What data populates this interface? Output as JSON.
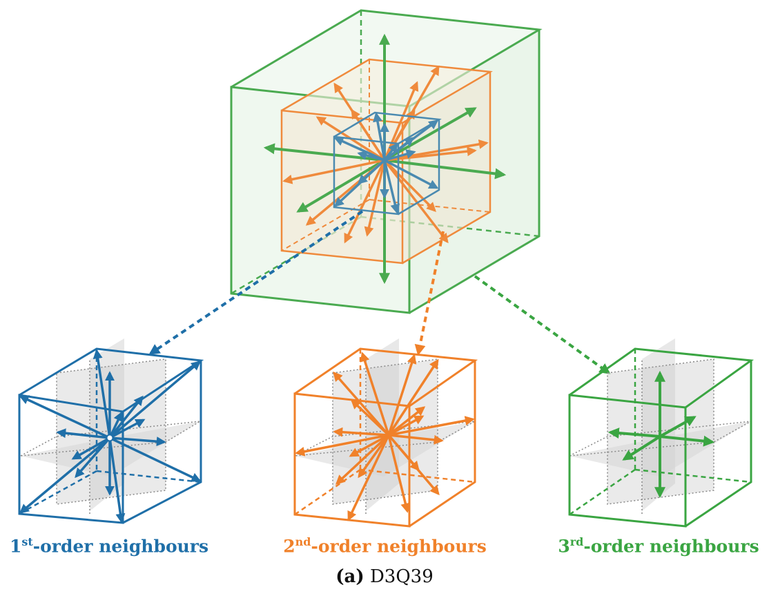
{
  "labels": {
    "first": {
      "num": "1",
      "sup": "st",
      "rest": "-order neighbours"
    },
    "second": {
      "num": "2",
      "sup": "nd",
      "rest": "-order neighbours"
    },
    "third": {
      "num": "3",
      "sup": "rd",
      "rest": "-order neighbours"
    }
  },
  "caption": {
    "tag": "(a)",
    "text": "D3Q39"
  },
  "colors": {
    "first_order": "#1f6fa8",
    "second_order": "#f0812a",
    "third_order": "#3aa542",
    "shell_blue_main": "#4a8ab0",
    "shell_orange_main": "#ef8a3c",
    "shell_green_main": "#4aaa50"
  }
}
